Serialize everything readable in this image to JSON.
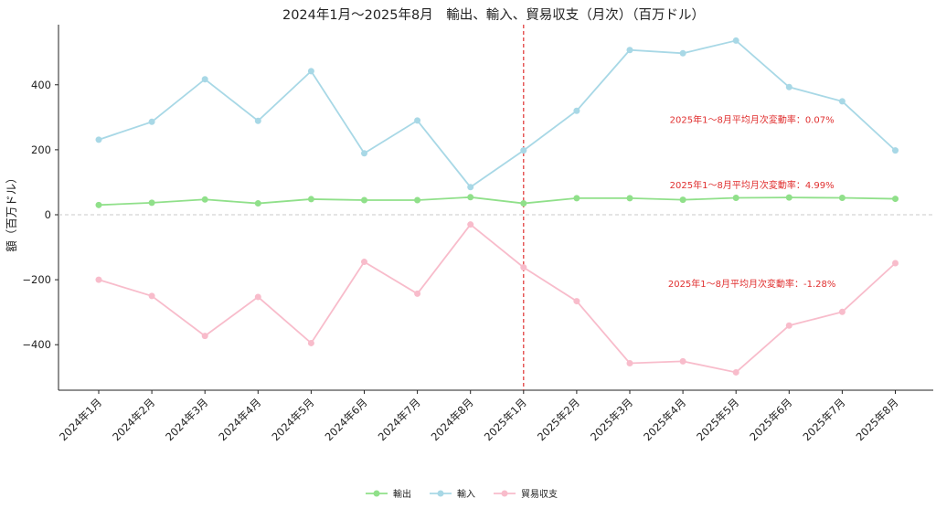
{
  "chart_data": {
    "type": "line",
    "title": "2024年1月〜2025年8月　輸出、輸入、貿易収支（月次）（百万ドル）",
    "xlabel": "",
    "ylabel": "額（百万ドル）",
    "categories": [
      "2024年1月",
      "2024年2月",
      "2024年3月",
      "2024年4月",
      "2024年5月",
      "2024年6月",
      "2024年7月",
      "2024年8月",
      "2025年1月",
      "2025年2月",
      "2025年3月",
      "2025年4月",
      "2025年5月",
      "2025年6月",
      "2025年7月",
      "2025年8月"
    ],
    "series": [
      {
        "name": "輸出",
        "color": "#90e08a",
        "values": [
          30,
          37,
          47,
          35,
          48,
          45,
          45,
          54,
          35,
          51,
          51,
          46,
          52,
          53,
          52,
          49
        ]
      },
      {
        "name": "輸入",
        "color": "#a8d8e6",
        "values": [
          231,
          286,
          417,
          289,
          442,
          189,
          290,
          85,
          198,
          320,
          507,
          497,
          536,
          393,
          349,
          198
        ]
      },
      {
        "name": "貿易収支",
        "color": "#f8bccb",
        "values": [
          -200,
          -250,
          -373,
          -253,
          -395,
          -145,
          -243,
          -30,
          -162,
          -266,
          -457,
          -451,
          -485,
          -341,
          -299,
          -149
        ]
      }
    ],
    "ylim": [
      -540,
      585
    ],
    "yticks": [
      -400,
      -200,
      0,
      200,
      400
    ],
    "zero_line": true,
    "divider_category_index": 8,
    "annotations": [
      {
        "text": "2025年1〜8月平均月次変動率：0.07%",
        "category_index": 12.3,
        "y": 282
      },
      {
        "text": "2025年1〜8月平均月次変動率：4.99%",
        "category_index": 12.3,
        "y": 82
      },
      {
        "text": "2025年1〜8月平均月次変動率：-1.28%",
        "category_index": 12.3,
        "y": -222
      }
    ],
    "legend_position": "bottom-center",
    "grid": false
  }
}
